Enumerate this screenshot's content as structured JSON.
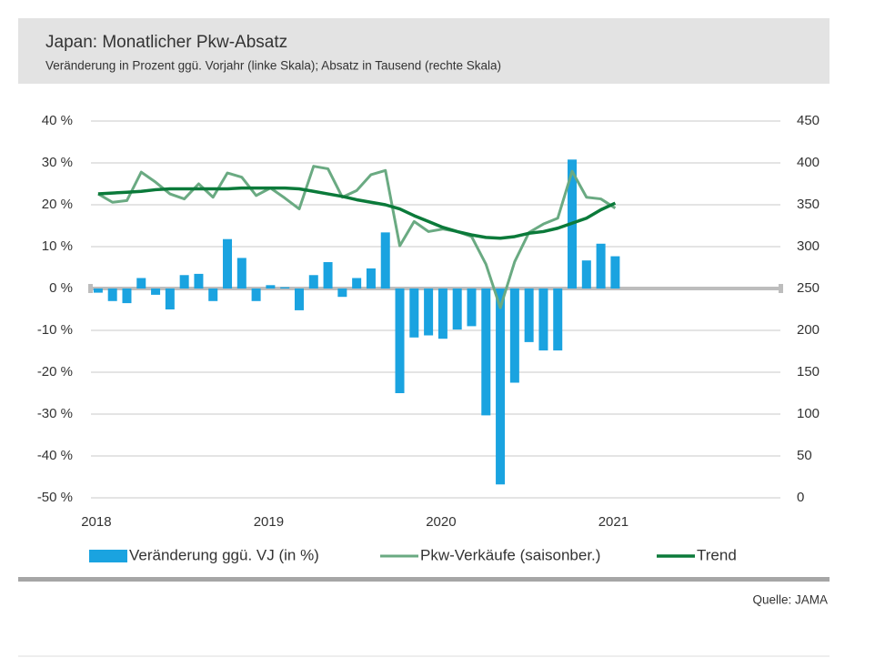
{
  "chart_data": {
    "type": "combo",
    "title": "Japan: Monatlicher Pkw-Absatz",
    "subtitle": "Veränderung in Prozent ggü. Vorjahr (linke Skala); Absatz in Tausend (rechte Skala)",
    "source": "Quelle: JAMA",
    "categories": [
      "2018",
      null,
      null,
      null,
      null,
      null,
      null,
      null,
      null,
      null,
      null,
      null,
      "2019",
      null,
      null,
      null,
      null,
      null,
      null,
      null,
      null,
      null,
      null,
      null,
      "2020",
      null,
      null,
      null,
      null,
      null,
      null,
      null,
      null,
      null,
      null,
      null,
      "2021",
      null,
      null,
      null,
      null,
      null,
      null,
      null,
      null,
      null,
      null,
      null
    ],
    "ylim": [
      -50,
      40
    ],
    "yticks": [
      {
        "value": -50,
        "label": "-50 %"
      },
      {
        "value": -40,
        "label": "-40 %"
      },
      {
        "value": -30,
        "label": "-30 %"
      },
      {
        "value": -20,
        "label": "-20 %"
      },
      {
        "value": -10,
        "label": "-10 %"
      },
      {
        "value": 0,
        "label": "0 %"
      },
      {
        "value": 10,
        "label": "10 %"
      },
      {
        "value": 20,
        "label": "20 %"
      },
      {
        "value": 30,
        "label": "30 %"
      },
      {
        "value": 40,
        "label": "40 %"
      }
    ],
    "y2lim": [
      0,
      450
    ],
    "y2ticks": [
      0,
      50,
      100,
      150,
      200,
      250,
      300,
      350,
      400,
      450
    ],
    "grid": true,
    "legend": "bottom",
    "series": [
      {
        "name": "Veränderung ggü. VJ (in %)",
        "type": "bar",
        "axis": "y",
        "color": "#1aa3e0",
        "values": [
          -1,
          -3,
          -3.5,
          2.5,
          -1.5,
          -5,
          3.2,
          3.5,
          -3,
          11.8,
          7.3,
          -3,
          0.8,
          0.3,
          -5.2,
          3.2,
          6.3,
          -2,
          2.5,
          4.8,
          13.4,
          -25,
          -11.7,
          -11.2,
          -12,
          -9.8,
          -9,
          -30.3,
          -46.8,
          -22.5,
          -12.8,
          -14.8,
          -14.8,
          30.8,
          6.7,
          10.7,
          7.7,
          null,
          null,
          null,
          null,
          null,
          null,
          null,
          null,
          null,
          null,
          null
        ]
      },
      {
        "name": "Pkw-Verkäufe (saisonber.)",
        "type": "line",
        "axis": "y2",
        "color": "#6aaa82",
        "values": [
          363,
          353,
          355,
          389,
          377,
          363,
          357,
          375,
          359,
          388,
          383,
          361,
          370,
          358,
          345,
          396,
          393,
          359,
          367,
          386,
          391,
          301,
          330,
          318,
          321,
          318,
          312,
          279,
          227,
          282,
          317,
          327,
          334,
          390,
          359,
          357,
          346,
          null,
          null,
          null,
          null,
          null,
          null,
          null,
          null,
          null,
          null,
          null
        ]
      },
      {
        "name": "Trend",
        "type": "line",
        "axis": "y2",
        "color": "#0b7a3a",
        "values": [
          363,
          364,
          365,
          366,
          368,
          369,
          369,
          369,
          369,
          369,
          370,
          370,
          370,
          370,
          369,
          366,
          363,
          360,
          356,
          353,
          350,
          345,
          337,
          330,
          323,
          318,
          314,
          311,
          310,
          312,
          316,
          318,
          322,
          328,
          334,
          344,
          352,
          null,
          null,
          null,
          null,
          null,
          null,
          null,
          null,
          null,
          null,
          null
        ]
      }
    ]
  }
}
